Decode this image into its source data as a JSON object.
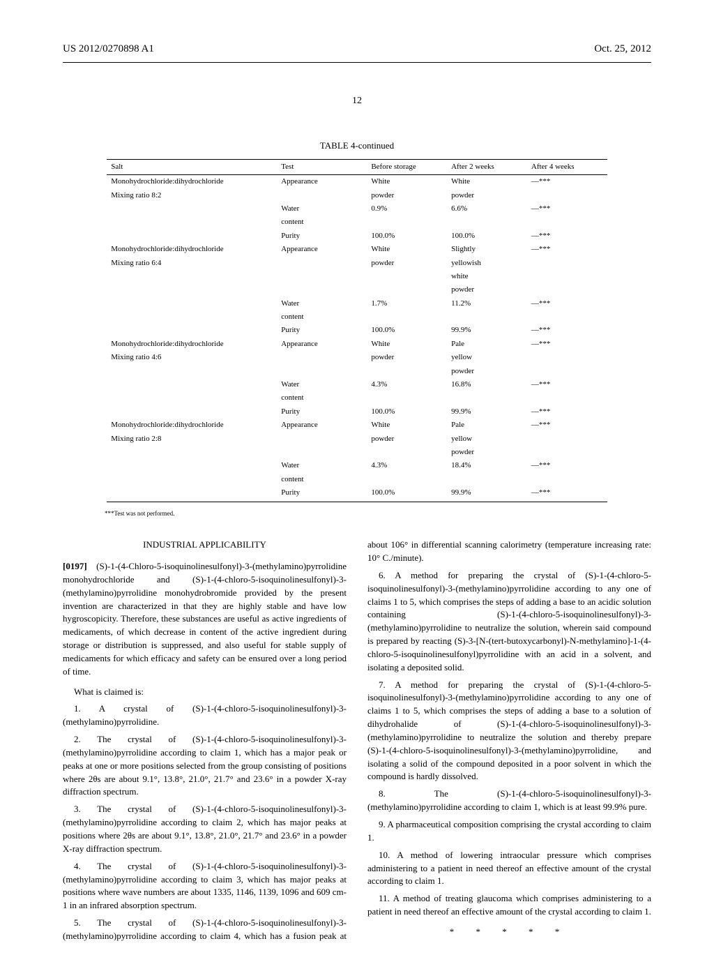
{
  "header": {
    "pub_number": "US 2012/0270898 A1",
    "pub_date": "Oct. 25, 2012"
  },
  "page_number": "12",
  "table": {
    "caption": "TABLE 4-continued",
    "columns": [
      "Salt",
      "Test",
      "Before storage",
      "After 2 weeks",
      "After 4 weeks"
    ],
    "rows": [
      [
        "Monohydrochloride:dihydrochloride",
        "Appearance",
        "White",
        "White",
        "—***"
      ],
      [
        "Mixing ratio 8:2",
        "",
        "powder",
        "powder",
        ""
      ],
      [
        "",
        "Water",
        "0.9%",
        "6.6%",
        "—***"
      ],
      [
        "",
        "content",
        "",
        "",
        ""
      ],
      [
        "",
        "Purity",
        "100.0%",
        "100.0%",
        "—***"
      ],
      [
        "Monohydrochloride:dihydrochloride",
        "Appearance",
        "White",
        "Slightly",
        "—***"
      ],
      [
        "Mixing ratio 6:4",
        "",
        "powder",
        "yellowish",
        ""
      ],
      [
        "",
        "",
        "",
        "white",
        ""
      ],
      [
        "",
        "",
        "",
        "powder",
        ""
      ],
      [
        "",
        "Water",
        "1.7%",
        "11.2%",
        "—***"
      ],
      [
        "",
        "content",
        "",
        "",
        ""
      ],
      [
        "",
        "Purity",
        "100.0%",
        "99.9%",
        "—***"
      ],
      [
        "Monohydrochloride:dihydrochloride",
        "Appearance",
        "White",
        "Pale",
        "—***"
      ],
      [
        "Mixing ratio 4:6",
        "",
        "powder",
        "yellow",
        ""
      ],
      [
        "",
        "",
        "",
        "powder",
        ""
      ],
      [
        "",
        "Water",
        "4.3%",
        "16.8%",
        "—***"
      ],
      [
        "",
        "content",
        "",
        "",
        ""
      ],
      [
        "",
        "Purity",
        "100.0%",
        "99.9%",
        "—***"
      ],
      [
        "Monohydrochloride:dihydrochloride",
        "Appearance",
        "White",
        "Pale",
        "—***"
      ],
      [
        "Mixing ratio 2:8",
        "",
        "powder",
        "yellow",
        ""
      ],
      [
        "",
        "",
        "",
        "powder",
        ""
      ],
      [
        "",
        "Water",
        "4.3%",
        "18.4%",
        "—***"
      ],
      [
        "",
        "content",
        "",
        "",
        ""
      ],
      [
        "",
        "Purity",
        "100.0%",
        "99.9%",
        "—***"
      ]
    ],
    "footnote": "***Test was not performed."
  },
  "body": {
    "industrial_heading": "INDUSTRIAL APPLICABILITY",
    "para_0197_label": "[0197]",
    "para_0197": "(S)-1-(4-Chloro-5-isoquinolinesulfonyl)-3-(methylamino)pyrrolidine monohydrochloride and (S)-1-(4-chloro-5-isoquinolinesulfonyl)-3-(methylamino)pyrrolidine monohydrobromide provided by the present invention are characterized in that they are highly stable and have low hygroscopicity. Therefore, these substances are useful as active ingredients of medicaments, of which decrease in content of the active ingredient during storage or distribution is suppressed, and also useful for stable supply of medicaments for which efficacy and safety can be ensured over a long period of time.",
    "claims_intro": "What is claimed is:",
    "claim_1": "1. A crystal of (S)-1-(4-chloro-5-isoquinolinesulfonyl)-3-(methylamino)pyrrolidine.",
    "claim_2": "2. The crystal of (S)-1-(4-chloro-5-isoquinolinesulfonyl)-3-(methylamino)pyrrolidine according to claim 1, which has a major peak or peaks at one or more positions selected from the group consisting of positions where 2θs are about 9.1°, 13.8°, 21.0°, 21.7° and 23.6° in a powder X-ray diffraction spectrum.",
    "claim_3": "3. The crystal of (S)-1-(4-chloro-5-isoquinolinesulfonyl)-3-(methylamino)pyrrolidine according to claim 2, which has major peaks at positions where 2θs are about 9.1°, 13.8°, 21.0°, 21.7° and 23.6° in a powder X-ray diffraction spectrum.",
    "claim_4": "4. The crystal of (S)-1-(4-chloro-5-isoquinolinesulfonyl)-3-(methylamino)pyrrolidine according to claim 3, which has major peaks at positions where wave numbers are about 1335, 1146, 1139, 1096 and 609 cm-1 in an infrared absorption spectrum.",
    "claim_5": "5. The crystal of (S)-1-(4-chloro-5-isoquinolinesulfonyl)-3-(methylamino)pyrrolidine according to claim 4, which has a fusion peak at about 106° in differential scanning calorimetry (temperature increasing rate: 10° C./minute).",
    "claim_6": "6. A method for preparing the crystal of (S)-1-(4-chloro-5-isoquinolinesulfonyl)-3-(methylamino)pyrrolidine according to any one of claims 1 to 5, which comprises the steps of adding a base to an acidic solution containing (S)-1-(4-chloro-5-isoquinolinesulfonyl)-3-(methylamino)pyrrolidine to neutralize the solution, wherein said compound is prepared by reacting (S)-3-[N-(tert-butoxycarbonyl)-N-methylamino]-1-(4-chloro-5-isoquinolinesulfonyl)pyrrolidine with an acid in a solvent, and isolating a deposited solid.",
    "claim_7": "7. A method for preparing the crystal of (S)-1-(4-chloro-5-isoquinolinesulfonyl)-3-(methylamino)pyrrolidine according to any one of claims 1 to 5, which comprises the steps of adding a base to a solution of dihydrohalide of (S)-1-(4-chloro-5-isoquinolinesulfonyl)-3-(methylamino)pyrrolidine to neutralize the solution and thereby prepare (S)-1-(4-chloro-5-isoquinolinesulfonyl)-3-(methylamino)pyrrolidine, and isolating a solid of the compound deposited in a poor solvent in which the compound is hardly dissolved.",
    "claim_8": "8. The (S)-1-(4-chloro-5-isoquinolinesulfonyl)-3-(methylamino)pyrrolidine according to claim 1, which is at least 99.9% pure.",
    "claim_9": "9. A pharmaceutical composition comprising the crystal according to claim 1.",
    "claim_10": "10. A method of lowering intraocular pressure which comprises administering to a patient in need thereof an effective amount of the crystal according to claim 1.",
    "claim_11": "11. A method of treating glaucoma which comprises administering to a patient in need thereof an effective amount of the crystal according to claim 1.",
    "end_marks": "*   *   *   *   *"
  }
}
